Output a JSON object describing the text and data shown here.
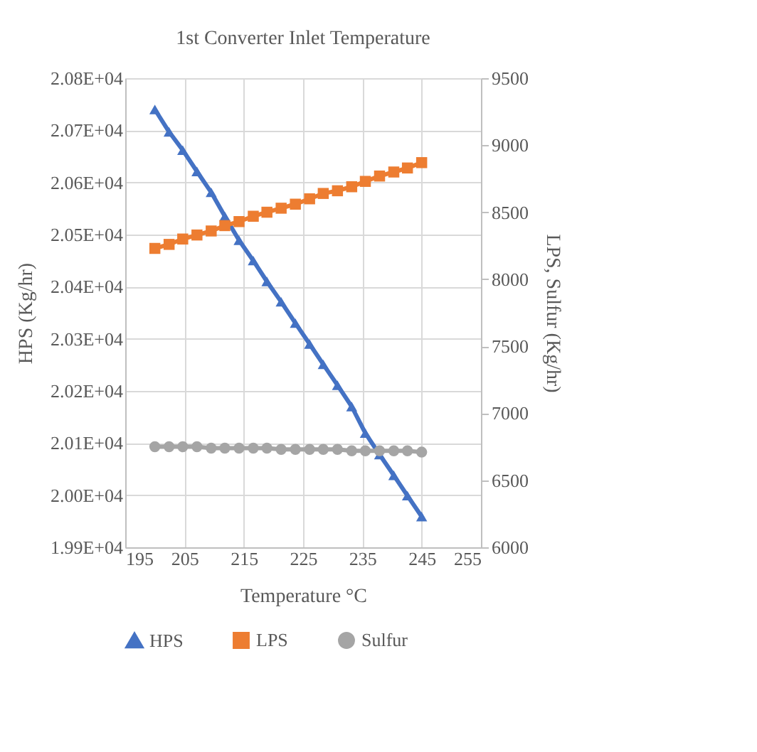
{
  "chart_data": {
    "type": "line",
    "title": "1st Converter Inlet Temperature",
    "xlabel": "Temperature °C",
    "ylabel": "HPS (Kg/hr)",
    "y2label": "LPS, Sulfur (Kg/hr)",
    "x": [
      200,
      202.4,
      204.7,
      207.1,
      209.5,
      211.8,
      214.2,
      216.6,
      218.9,
      221.3,
      223.7,
      226.1,
      228.4,
      230.8,
      233.2,
      235.5,
      237.9,
      240.3,
      242.6,
      245
    ],
    "series": [
      {
        "name": "HPS",
        "color": "#4472c4",
        "marker": "triangle",
        "values": [
          20740,
          20697,
          20662,
          20621,
          20581,
          20535,
          20489,
          20450,
          20410,
          20371,
          20330,
          20290,
          20251,
          20211,
          20170,
          20119,
          20078,
          20038,
          19999,
          19959
        ]
      },
      {
        "name": "LPS",
        "color": "#ed7d31",
        "marker": "square",
        "axis": "y2",
        "values": [
          8230,
          8260,
          8300,
          8330,
          8360,
          8400,
          8430,
          8470,
          8500,
          8530,
          8560,
          8600,
          8640,
          8660,
          8690,
          8730,
          8770,
          8800,
          8830,
          8870
        ]
      },
      {
        "name": "Sulfur",
        "color": "#a5a5a5",
        "marker": "circle",
        "axis": "y2",
        "values": [
          6750,
          6750,
          6750,
          6750,
          6740,
          6740,
          6740,
          6740,
          6740,
          6730,
          6730,
          6730,
          6730,
          6730,
          6720,
          6720,
          6720,
          6720,
          6720,
          6710
        ]
      }
    ],
    "xlim": [
      195,
      255
    ],
    "xticks": [
      195,
      205,
      215,
      225,
      235,
      245,
      255
    ],
    "ylim": [
      19900,
      20800
    ],
    "yticks": [
      {
        "value": 19900,
        "label": "1.99E+04"
      },
      {
        "value": 20000,
        "label": "2.00E+04"
      },
      {
        "value": 20100,
        "label": "2.01E+04"
      },
      {
        "value": 20200,
        "label": "2.02E+04"
      },
      {
        "value": 20300,
        "label": "2.03E+04"
      },
      {
        "value": 20400,
        "label": "2.04E+04"
      },
      {
        "value": 20500,
        "label": "2.05E+04"
      },
      {
        "value": 20600,
        "label": "2.06E+04"
      },
      {
        "value": 20700,
        "label": "2.07E+04"
      },
      {
        "value": 20800,
        "label": "2.08E+04"
      }
    ],
    "y2lim": [
      6000,
      9500
    ],
    "y2ticks": [
      6000,
      6500,
      7000,
      7500,
      8000,
      8500,
      9000,
      9500
    ],
    "grid": true,
    "legend": "bottom",
    "line_style": "solid"
  }
}
